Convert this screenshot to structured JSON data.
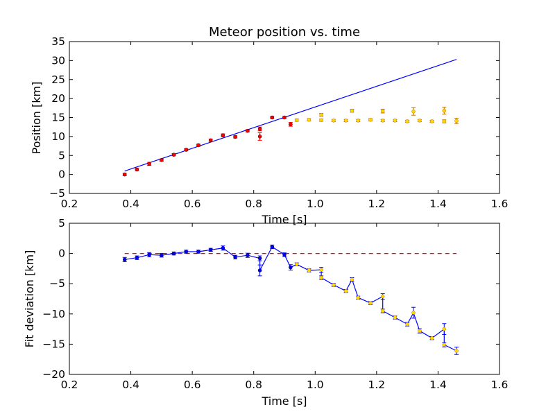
{
  "chart_data": [
    {
      "type": "scatter",
      "title": "Meteor position vs. time",
      "xlabel": "Time [s]",
      "ylabel": "Position [km]",
      "xlim": [
        0.2,
        1.6
      ],
      "ylim": [
        -5,
        35
      ],
      "xticks": [
        "0.2",
        "0.4",
        "0.6",
        "0.8",
        "1.0",
        "1.2",
        "1.4",
        "1.6"
      ],
      "yticks": [
        "−5",
        "0",
        "5",
        "10",
        "15",
        "20",
        "25",
        "30",
        "35"
      ],
      "grid": false,
      "colors": {
        "fit": "#0000ff",
        "early": "#ff0000",
        "late": "#ffd700",
        "errorbar": "#ff0000"
      },
      "series": [
        {
          "kind": "points",
          "color_role": "early",
          "points": [
            {
              "x": 0.38,
              "y": 0.0,
              "err": 0.3
            },
            {
              "x": 0.42,
              "y": 1.3,
              "err": 0.3
            },
            {
              "x": 0.46,
              "y": 2.8,
              "err": 0.4
            },
            {
              "x": 0.5,
              "y": 3.8,
              "err": 0.3
            },
            {
              "x": 0.54,
              "y": 5.2,
              "err": 0.3
            },
            {
              "x": 0.58,
              "y": 6.5,
              "err": 0.3
            },
            {
              "x": 0.62,
              "y": 7.7,
              "err": 0.3
            },
            {
              "x": 0.66,
              "y": 9.0,
              "err": 0.3
            },
            {
              "x": 0.7,
              "y": 10.3,
              "err": 0.4
            },
            {
              "x": 0.74,
              "y": 9.9,
              "err": 0.3
            },
            {
              "x": 0.78,
              "y": 11.5,
              "err": 0.3
            },
            {
              "x": 0.82,
              "y": 12.0,
              "err": 0.5
            },
            {
              "x": 0.82,
              "y": 10.0,
              "err": 1.0
            },
            {
              "x": 0.86,
              "y": 15.0,
              "err": 0.3
            },
            {
              "x": 0.9,
              "y": 15.0,
              "err": 0.3
            },
            {
              "x": 0.92,
              "y": 13.2,
              "err": 0.5
            }
          ]
        },
        {
          "kind": "points",
          "color_role": "late",
          "points": [
            {
              "x": 0.94,
              "y": 14.3,
              "err": 0.3
            },
            {
              "x": 0.98,
              "y": 14.4,
              "err": 0.3
            },
            {
              "x": 1.02,
              "y": 14.3,
              "err": 0.3
            },
            {
              "x": 1.02,
              "y": 15.7,
              "err": 0.4
            },
            {
              "x": 1.06,
              "y": 14.2,
              "err": 0.3
            },
            {
              "x": 1.1,
              "y": 14.2,
              "err": 0.3
            },
            {
              "x": 1.12,
              "y": 16.8,
              "err": 0.4
            },
            {
              "x": 1.14,
              "y": 14.2,
              "err": 0.3
            },
            {
              "x": 1.18,
              "y": 14.4,
              "err": 0.3
            },
            {
              "x": 1.22,
              "y": 14.2,
              "err": 0.3
            },
            {
              "x": 1.22,
              "y": 16.7,
              "err": 0.5
            },
            {
              "x": 1.26,
              "y": 14.2,
              "err": 0.3
            },
            {
              "x": 1.3,
              "y": 14.0,
              "err": 0.3
            },
            {
              "x": 1.32,
              "y": 16.6,
              "err": 1.0
            },
            {
              "x": 1.34,
              "y": 14.2,
              "err": 0.3
            },
            {
              "x": 1.38,
              "y": 14.0,
              "err": 0.3
            },
            {
              "x": 1.42,
              "y": 14.0,
              "err": 0.4
            },
            {
              "x": 1.42,
              "y": 16.8,
              "err": 0.9
            },
            {
              "x": 1.46,
              "y": 14.1,
              "err": 0.7
            }
          ]
        },
        {
          "kind": "line",
          "color_role": "fit",
          "x": [
            0.38,
            1.46
          ],
          "y": [
            0.9,
            30.3
          ]
        }
      ]
    },
    {
      "type": "line",
      "title": "",
      "xlabel": "Time [s]",
      "ylabel": "Fit deviation [km]",
      "xlim": [
        0.2,
        1.6
      ],
      "ylim": [
        -20,
        5
      ],
      "xticks": [
        "0.2",
        "0.4",
        "0.6",
        "0.8",
        "1.0",
        "1.2",
        "1.4",
        "1.6"
      ],
      "yticks": [
        "−20",
        "−15",
        "−10",
        "−5",
        "0",
        "5"
      ],
      "grid": false,
      "colors": {
        "line": "#0000ff",
        "zero": "#ff0000",
        "early": "#0000ff",
        "late": "#ffd700"
      },
      "zero_line": {
        "x": [
          0.38,
          1.46
        ],
        "y": 0
      },
      "series": [
        {
          "kind": "errorline",
          "points": [
            {
              "x": 0.38,
              "y": -1.0,
              "err": 0.35,
              "role": "early"
            },
            {
              "x": 0.42,
              "y": -0.7,
              "err": 0.3,
              "role": "early"
            },
            {
              "x": 0.46,
              "y": -0.2,
              "err": 0.35,
              "role": "early"
            },
            {
              "x": 0.5,
              "y": -0.3,
              "err": 0.3,
              "role": "early"
            },
            {
              "x": 0.54,
              "y": 0.0,
              "err": 0.25,
              "role": "early"
            },
            {
              "x": 0.58,
              "y": 0.3,
              "err": 0.25,
              "role": "early"
            },
            {
              "x": 0.62,
              "y": 0.3,
              "err": 0.25,
              "role": "early"
            },
            {
              "x": 0.66,
              "y": 0.6,
              "err": 0.25,
              "role": "early"
            },
            {
              "x": 0.7,
              "y": 0.9,
              "err": 0.35,
              "role": "early"
            },
            {
              "x": 0.74,
              "y": -0.6,
              "err": 0.3,
              "role": "early"
            },
            {
              "x": 0.78,
              "y": -0.3,
              "err": 0.35,
              "role": "early"
            },
            {
              "x": 0.82,
              "y": -0.8,
              "err": 0.4,
              "role": "early"
            },
            {
              "x": 0.82,
              "y": -2.8,
              "err": 0.9,
              "role": "early"
            },
            {
              "x": 0.86,
              "y": 1.1,
              "err": 0.3,
              "role": "early"
            },
            {
              "x": 0.9,
              "y": -0.2,
              "err": 0.3,
              "role": "early"
            },
            {
              "x": 0.92,
              "y": -2.3,
              "err": 0.45,
              "role": "early"
            },
            {
              "x": 0.94,
              "y": -1.8,
              "err": 0.25,
              "role": "late"
            },
            {
              "x": 0.98,
              "y": -2.8,
              "err": 0.25,
              "role": "late"
            },
            {
              "x": 1.02,
              "y": -2.7,
              "err": 0.4,
              "role": "late"
            },
            {
              "x": 1.02,
              "y": -4.0,
              "err": 0.3,
              "role": "late"
            },
            {
              "x": 1.06,
              "y": -5.2,
              "err": 0.25,
              "role": "late"
            },
            {
              "x": 1.1,
              "y": -6.2,
              "err": 0.25,
              "role": "late"
            },
            {
              "x": 1.12,
              "y": -4.3,
              "err": 0.3,
              "role": "late"
            },
            {
              "x": 1.14,
              "y": -7.3,
              "err": 0.25,
              "role": "late"
            },
            {
              "x": 1.18,
              "y": -8.2,
              "err": 0.25,
              "role": "late"
            },
            {
              "x": 1.22,
              "y": -7.1,
              "err": 0.45,
              "role": "late"
            },
            {
              "x": 1.22,
              "y": -9.5,
              "err": 0.3,
              "role": "late"
            },
            {
              "x": 1.26,
              "y": -10.6,
              "err": 0.25,
              "role": "late"
            },
            {
              "x": 1.3,
              "y": -11.7,
              "err": 0.3,
              "role": "late"
            },
            {
              "x": 1.32,
              "y": -9.8,
              "err": 0.9,
              "role": "late"
            },
            {
              "x": 1.34,
              "y": -12.8,
              "err": 0.35,
              "role": "late"
            },
            {
              "x": 1.38,
              "y": -14.0,
              "err": 0.25,
              "role": "late"
            },
            {
              "x": 1.42,
              "y": -12.5,
              "err": 0.9,
              "role": "late"
            },
            {
              "x": 1.42,
              "y": -15.1,
              "err": 0.35,
              "role": "late"
            },
            {
              "x": 1.46,
              "y": -16.1,
              "err": 0.6,
              "role": "late"
            }
          ]
        }
      ]
    }
  ]
}
